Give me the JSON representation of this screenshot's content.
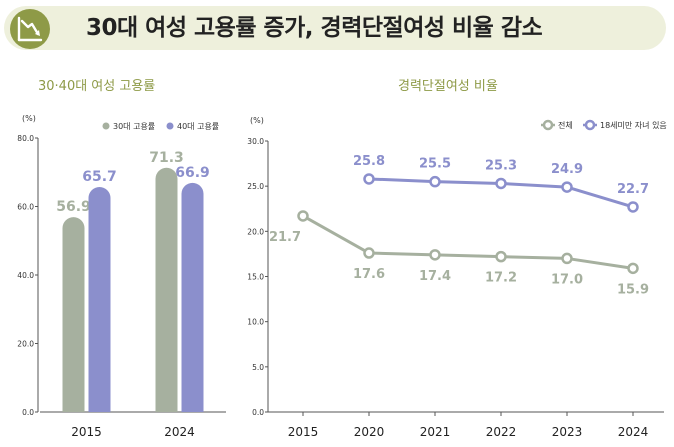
{
  "header": {
    "title": "30대 여성 고용률 증가, 경력단절여성 비율 감소",
    "icon": "declining-chart-icon"
  },
  "colors": {
    "banner_bg": "#eef0dc",
    "accent": "#8e9a47",
    "gray_series": "#a6b09f",
    "purple_series": "#8b8fcc"
  },
  "chart_data": [
    {
      "type": "bar",
      "title": "30·40대 여성 고용률",
      "unit": "(%)",
      "categories": [
        "2015",
        "2024"
      ],
      "series": [
        {
          "name": "30대 고용률",
          "values": [
            56.9,
            71.3
          ],
          "labels": [
            "56.9",
            "71.3"
          ]
        },
        {
          "name": "40대 고용률",
          "values": [
            65.7,
            66.9
          ],
          "labels": [
            "65.7",
            "66.9"
          ]
        }
      ],
      "yticks": [
        "0.0",
        "20.0",
        "40.0",
        "60.0",
        "80.0"
      ],
      "ylim": [
        0,
        80
      ],
      "legend": "top-right"
    },
    {
      "type": "line",
      "title": "경력단절여성 비율",
      "unit": "(%)",
      "categories": [
        "2015",
        "2020",
        "2021",
        "2022",
        "2023",
        "2024"
      ],
      "series": [
        {
          "name": "전체",
          "values": [
            21.7,
            17.6,
            17.4,
            17.2,
            17.0,
            15.9
          ],
          "labels": [
            "21.7",
            "17.6",
            "17.4",
            "17.2",
            "17.0",
            "15.9"
          ]
        },
        {
          "name": "18세미만 자녀 있음",
          "values": [
            null,
            25.8,
            25.5,
            25.3,
            24.9,
            22.7
          ],
          "labels": [
            "",
            "25.8",
            "25.5",
            "25.3",
            "24.9",
            "22.7"
          ]
        }
      ],
      "yticks": [
        "0.0",
        "5.0",
        "10.0",
        "15.0",
        "20.0",
        "25.0",
        "30.0"
      ],
      "ylim": [
        0,
        30
      ],
      "legend": "top-right"
    }
  ]
}
